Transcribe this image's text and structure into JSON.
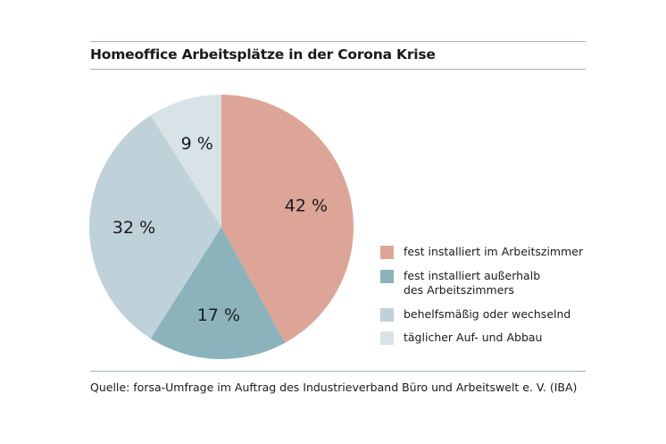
{
  "chart_data": {
    "type": "pie",
    "title": "Homeoffice Arbeitsplätze in der Corona Krise",
    "slices": [
      {
        "label": "fest installiert im Arbeitszimmer",
        "value": 42,
        "value_label": "42 %",
        "color": "#dda597"
      },
      {
        "label": "fest installiert außerhalb\ndes Arbeitszimmers",
        "value": 17,
        "value_label": "17 %",
        "color": "#8cb3bc"
      },
      {
        "label": "behelfsmäßig oder wechselnd",
        "value": 32,
        "value_label": "32 %",
        "color": "#bfd2d9"
      },
      {
        "label": "täglicher Auf- und Abbau",
        "value": 9,
        "value_label": "9 %",
        "color": "#d8e3e7"
      }
    ],
    "legend_position": "right",
    "source": "Quelle: forsa-Umfrage im Auftrag des Industrieverband Büro und Arbeitswelt e. V. (IBA)"
  }
}
